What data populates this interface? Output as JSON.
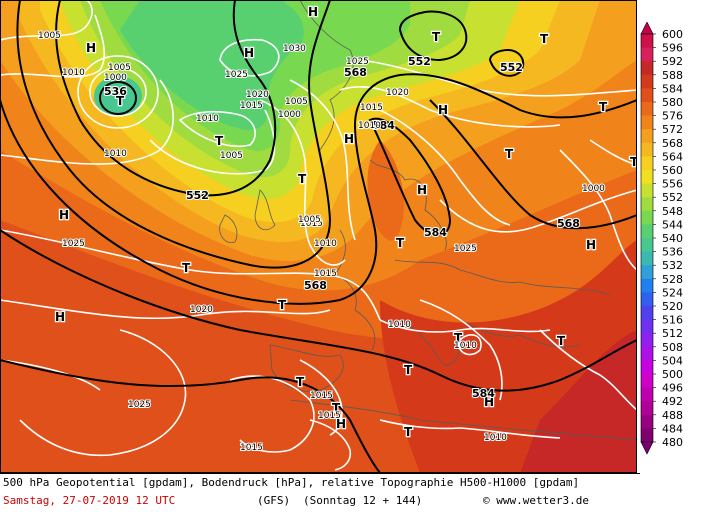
{
  "caption": {
    "line1": "500 hPa Geopotential [gpdam], Bodendruck [hPa], relative Topographie H500-H1000 [gpdam]",
    "date": "Samstag, 27-07-2019  12 UTC",
    "model": "(GFS)",
    "forecast": "(Sonntag 12 + 144)",
    "copyright": "© www.wetter3.de"
  },
  "legend": {
    "values": [
      "600",
      "596",
      "592",
      "588",
      "584",
      "580",
      "576",
      "572",
      "568",
      "564",
      "560",
      "556",
      "552",
      "548",
      "544",
      "540",
      "536",
      "532",
      "528",
      "524",
      "520",
      "516",
      "512",
      "508",
      "504",
      "500",
      "496",
      "492",
      "488",
      "484",
      "480"
    ],
    "colors": [
      "#c8002e",
      "#d0104a",
      "#d8205c",
      "#c62828",
      "#d43a1a",
      "#e0501a",
      "#ea6a1a",
      "#f0841a",
      "#f4a01e",
      "#f6b820",
      "#f6d020",
      "#f0e020",
      "#c8e030",
      "#a0dc40",
      "#78d850",
      "#58d070",
      "#48c890",
      "#3cb8b0",
      "#30a0d8",
      "#2080f0",
      "#3060f0",
      "#5040f0",
      "#7030f0",
      "#9020f0",
      "#b010e8",
      "#c800e0",
      "#d000c8",
      "#c000b0",
      "#b00098",
      "#980080",
      "#800070"
    ],
    "top_color": "#c8004a",
    "bottom_color": "#7a0070"
  },
  "pressure_systems": [
    {
      "type": "H"
    },
    {
      "type": "H"
    },
    {
      "type": "H"
    },
    {
      "type": "H"
    },
    {
      "type": "H"
    },
    {
      "type": "H"
    },
    {
      "type": "H"
    },
    {
      "type": "H"
    },
    {
      "type": "H"
    },
    {
      "type": "H"
    },
    {
      "type": "H"
    },
    {
      "type": "T"
    },
    {
      "type": "T"
    },
    {
      "type": "T"
    },
    {
      "type": "T"
    },
    {
      "type": "T"
    },
    {
      "type": "T"
    },
    {
      "type": "T"
    },
    {
      "type": "T"
    },
    {
      "type": "T"
    },
    {
      "type": "T"
    },
    {
      "type": "T"
    },
    {
      "type": "T"
    },
    {
      "type": "T"
    },
    {
      "type": "T"
    },
    {
      "type": "T"
    },
    {
      "type": "T"
    },
    {
      "type": "T"
    }
  ],
  "geopotential_labels": [
    "536",
    "552",
    "552",
    "552",
    "568",
    "568",
    "584",
    "584",
    "568",
    "584"
  ],
  "isobar_labels": [
    "1005",
    "1010",
    "1005",
    "1000",
    "1010",
    "1030",
    "1025",
    "1025",
    "1020",
    "1015",
    "1010",
    "1005",
    "1005",
    "1000",
    "1020",
    "1015",
    "1010",
    "1025",
    "1015",
    "1005",
    "1010",
    "1015",
    "1020",
    "1010",
    "1010",
    "1025",
    "1015",
    "1015",
    "1010",
    "1015",
    "1000",
    "1025"
  ]
}
